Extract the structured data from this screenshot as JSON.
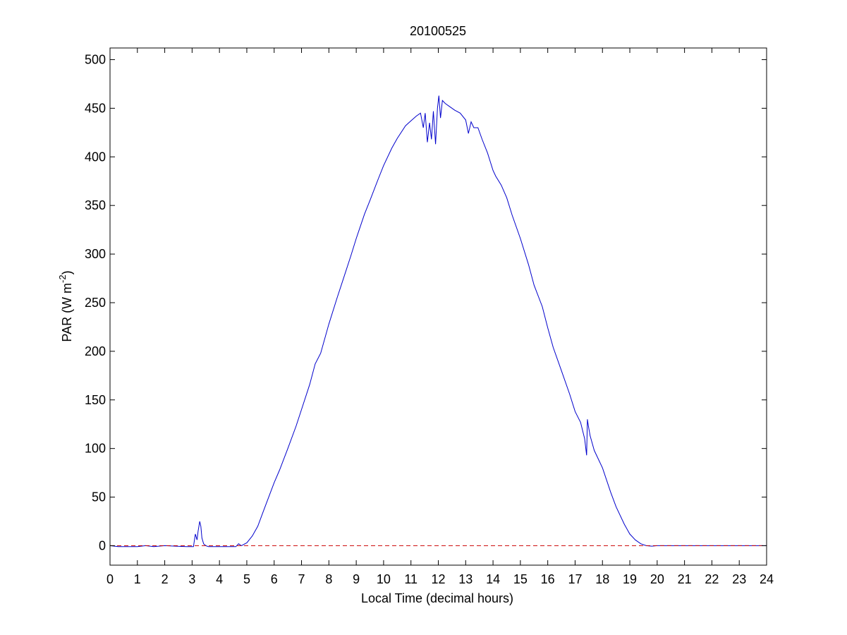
{
  "chart_data": {
    "type": "line",
    "title": "20100525",
    "xlabel": "Local Time (decimal hours)",
    "ylabel_main": "PAR (W m",
    "ylabel_sup": "-2",
    "ylabel_close": ")",
    "xlim": [
      0,
      24
    ],
    "ylim": [
      -20,
      512
    ],
    "xticks": [
      0,
      1,
      2,
      3,
      4,
      5,
      6,
      7,
      8,
      9,
      10,
      11,
      12,
      13,
      14,
      15,
      16,
      17,
      18,
      19,
      20,
      21,
      22,
      23,
      24
    ],
    "yticks": [
      0,
      50,
      100,
      150,
      200,
      250,
      300,
      350,
      400,
      450,
      500
    ],
    "grid": false,
    "series": [
      {
        "color": "#0000cc",
        "style": "solid",
        "x": [
          0.0,
          0.3,
          0.6,
          1.0,
          1.3,
          1.6,
          2.0,
          2.4,
          2.8,
          3.05,
          3.12,
          3.18,
          3.22,
          3.28,
          3.32,
          3.36,
          3.42,
          3.5,
          3.6,
          3.8,
          4.0,
          4.3,
          4.6,
          4.7,
          4.8,
          5.0,
          5.2,
          5.4,
          5.6,
          5.8,
          6.0,
          6.2,
          6.5,
          6.8,
          7.0,
          7.3,
          7.5,
          7.7,
          8.0,
          8.3,
          8.5,
          8.8,
          9.0,
          9.3,
          9.5,
          9.8,
          10.0,
          10.3,
          10.5,
          10.8,
          11.0,
          11.2,
          11.35,
          11.45,
          11.52,
          11.6,
          11.68,
          11.75,
          11.82,
          11.9,
          11.97,
          12.02,
          12.08,
          12.15,
          12.25,
          12.4,
          12.6,
          12.8,
          13.0,
          13.1,
          13.2,
          13.3,
          13.45,
          13.6,
          13.8,
          14.0,
          14.1,
          14.3,
          14.5,
          14.7,
          15.0,
          15.3,
          15.5,
          15.8,
          16.0,
          16.2,
          16.5,
          16.8,
          17.0,
          17.2,
          17.35,
          17.42,
          17.45,
          17.48,
          17.55,
          17.7,
          18.0,
          18.3,
          18.5,
          18.8,
          19.0,
          19.2,
          19.4,
          19.6,
          19.8,
          20.0,
          21.0,
          22.0,
          23.0,
          24.0
        ],
        "y": [
          0,
          -1,
          -1,
          -1,
          0,
          -1,
          0,
          -0.5,
          -1,
          -1,
          12,
          6,
          15,
          25,
          20,
          8,
          2,
          0,
          -1,
          -1,
          -1,
          -1,
          -1,
          2,
          0,
          3,
          10,
          20,
          35,
          50,
          65,
          78,
          100,
          123,
          140,
          166,
          187,
          198,
          228,
          255,
          272,
          298,
          316,
          341,
          355,
          377,
          391,
          409,
          419,
          432,
          437,
          442,
          445,
          430,
          445,
          415,
          435,
          418,
          447,
          413,
          450,
          463,
          440,
          458,
          455,
          452,
          448,
          445,
          438,
          424,
          436,
          430,
          430,
          418,
          404,
          386,
          380,
          371,
          358,
          340,
          316,
          289,
          268,
          246,
          224,
          204,
          180,
          156,
          138,
          127,
          110,
          93,
          130,
          124,
          113,
          98,
          80,
          55,
          40,
          22,
          12,
          6,
          2,
          0,
          -0.5,
          0,
          0,
          0,
          0,
          0
        ]
      },
      {
        "color": "#cc0000",
        "style": "dashed",
        "x": [
          0,
          24
        ],
        "y": [
          0,
          0
        ]
      }
    ]
  }
}
